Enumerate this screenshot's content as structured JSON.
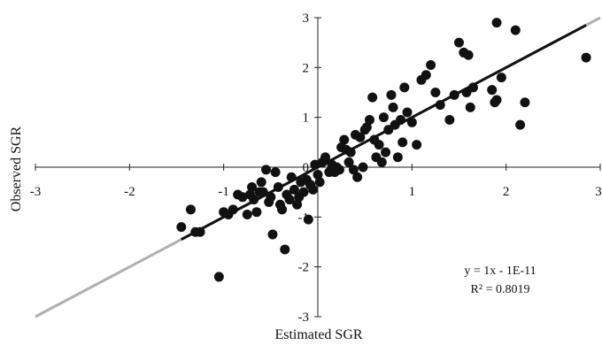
{
  "chart_data": {
    "type": "scatter",
    "xlabel": "Estimated SGR",
    "ylabel": "Observed SGR",
    "xlim": [
      -3,
      3
    ],
    "ylim": [
      -3,
      3
    ],
    "x_ticks": [
      "-3",
      "-2",
      "-1",
      "0",
      "1",
      "2",
      "3"
    ],
    "y_ticks": [
      "-3",
      "-2",
      "-1",
      "0",
      "1",
      "2",
      "3"
    ],
    "grid": false,
    "legend": "none",
    "colors": {
      "points": "#111111",
      "fit_line": "#111111",
      "identity_line": "#b0b0b0",
      "axes": "#222222"
    },
    "trendline": {
      "equation": "y = 1x - 1E-11",
      "r_squared": "R² = 0.8019",
      "slope": 1,
      "intercept": 0,
      "x_range": [
        -1.45,
        2.85
      ]
    },
    "identity_line_x_range": [
      -3,
      3
    ],
    "points": [
      {
        "x": -1.45,
        "y": -1.2
      },
      {
        "x": -1.35,
        "y": -0.85
      },
      {
        "x": -1.3,
        "y": -1.3
      },
      {
        "x": -1.25,
        "y": -1.3
      },
      {
        "x": -1.05,
        "y": -2.2
      },
      {
        "x": -1.0,
        "y": -0.9
      },
      {
        "x": -0.95,
        "y": -0.95
      },
      {
        "x": -0.9,
        "y": -0.85
      },
      {
        "x": -0.85,
        "y": -0.55
      },
      {
        "x": -0.8,
        "y": -0.6
      },
      {
        "x": -0.75,
        "y": -0.95
      },
      {
        "x": -0.72,
        "y": -0.55
      },
      {
        "x": -0.7,
        "y": -0.4
      },
      {
        "x": -0.68,
        "y": -0.65
      },
      {
        "x": -0.65,
        "y": -0.9
      },
      {
        "x": -0.62,
        "y": -0.5
      },
      {
        "x": -0.6,
        "y": -0.3
      },
      {
        "x": -0.58,
        "y": -0.5
      },
      {
        "x": -0.55,
        "y": -0.05
      },
      {
        "x": -0.52,
        "y": -0.7
      },
      {
        "x": -0.5,
        "y": -0.6
      },
      {
        "x": -0.48,
        "y": -1.35
      },
      {
        "x": -0.45,
        "y": -0.1
      },
      {
        "x": -0.42,
        "y": -0.4
      },
      {
        "x": -0.4,
        "y": -0.75
      },
      {
        "x": -0.38,
        "y": -0.85
      },
      {
        "x": -0.35,
        "y": -1.65
      },
      {
        "x": -0.33,
        "y": -0.55
      },
      {
        "x": -0.3,
        "y": -0.65
      },
      {
        "x": -0.28,
        "y": -0.2
      },
      {
        "x": -0.25,
        "y": -0.45
      },
      {
        "x": -0.22,
        "y": -0.75
      },
      {
        "x": -0.2,
        "y": -0.6
      },
      {
        "x": -0.18,
        "y": -0.3
      },
      {
        "x": -0.15,
        "y": -0.5
      },
      {
        "x": -0.12,
        "y": -0.25
      },
      {
        "x": -0.1,
        "y": -1.05
      },
      {
        "x": -0.08,
        "y": -0.35
      },
      {
        "x": -0.05,
        "y": -0.45
      },
      {
        "x": -0.03,
        "y": 0.05
      },
      {
        "x": 0.0,
        "y": -0.15
      },
      {
        "x": 0.02,
        "y": -0.3
      },
      {
        "x": 0.05,
        "y": 0.1
      },
      {
        "x": 0.08,
        "y": 0.2
      },
      {
        "x": 0.12,
        "y": -0.1
      },
      {
        "x": 0.15,
        "y": 0.05
      },
      {
        "x": 0.18,
        "y": -0.1
      },
      {
        "x": 0.2,
        "y": 0.0
      },
      {
        "x": 0.23,
        "y": -0.05
      },
      {
        "x": 0.25,
        "y": 0.4
      },
      {
        "x": 0.28,
        "y": 0.55
      },
      {
        "x": 0.3,
        "y": 0.35
      },
      {
        "x": 0.33,
        "y": 0.1
      },
      {
        "x": 0.35,
        "y": 0.3
      },
      {
        "x": 0.38,
        "y": -0.05
      },
      {
        "x": 0.4,
        "y": 0.65
      },
      {
        "x": 0.42,
        "y": -0.2
      },
      {
        "x": 0.45,
        "y": 0.6
      },
      {
        "x": 0.48,
        "y": 0.0
      },
      {
        "x": 0.5,
        "y": 0.75
      },
      {
        "x": 0.52,
        "y": 0.8
      },
      {
        "x": 0.55,
        "y": 0.95
      },
      {
        "x": 0.58,
        "y": 1.4
      },
      {
        "x": 0.6,
        "y": 0.55
      },
      {
        "x": 0.62,
        "y": 0.2
      },
      {
        "x": 0.65,
        "y": 0.45
      },
      {
        "x": 0.68,
        "y": 0.1
      },
      {
        "x": 0.7,
        "y": 1.0
      },
      {
        "x": 0.72,
        "y": 0.3
      },
      {
        "x": 0.75,
        "y": 0.75
      },
      {
        "x": 0.78,
        "y": 1.45
      },
      {
        "x": 0.8,
        "y": 1.2
      },
      {
        "x": 0.82,
        "y": 0.85
      },
      {
        "x": 0.85,
        "y": 0.2
      },
      {
        "x": 0.88,
        "y": 0.95
      },
      {
        "x": 0.9,
        "y": 0.5
      },
      {
        "x": 0.92,
        "y": 1.6
      },
      {
        "x": 0.95,
        "y": 1.1
      },
      {
        "x": 1.0,
        "y": 0.9
      },
      {
        "x": 1.05,
        "y": 0.45
      },
      {
        "x": 1.1,
        "y": 1.75
      },
      {
        "x": 1.15,
        "y": 1.85
      },
      {
        "x": 1.2,
        "y": 2.05
      },
      {
        "x": 1.25,
        "y": 1.5
      },
      {
        "x": 1.3,
        "y": 1.25
      },
      {
        "x": 1.4,
        "y": 0.95
      },
      {
        "x": 1.45,
        "y": 1.45
      },
      {
        "x": 1.5,
        "y": 2.5
      },
      {
        "x": 1.55,
        "y": 2.3
      },
      {
        "x": 1.58,
        "y": 1.5
      },
      {
        "x": 1.6,
        "y": 2.25
      },
      {
        "x": 1.62,
        "y": 1.2
      },
      {
        "x": 1.65,
        "y": 1.6
      },
      {
        "x": 1.85,
        "y": 1.55
      },
      {
        "x": 1.88,
        "y": 1.3
      },
      {
        "x": 1.9,
        "y": 1.35
      },
      {
        "x": 1.95,
        "y": 1.8
      },
      {
        "x": 1.9,
        "y": 2.9
      },
      {
        "x": 2.1,
        "y": 2.75
      },
      {
        "x": 2.15,
        "y": 0.85
      },
      {
        "x": 2.2,
        "y": 1.3
      },
      {
        "x": 2.85,
        "y": 2.2
      }
    ]
  }
}
